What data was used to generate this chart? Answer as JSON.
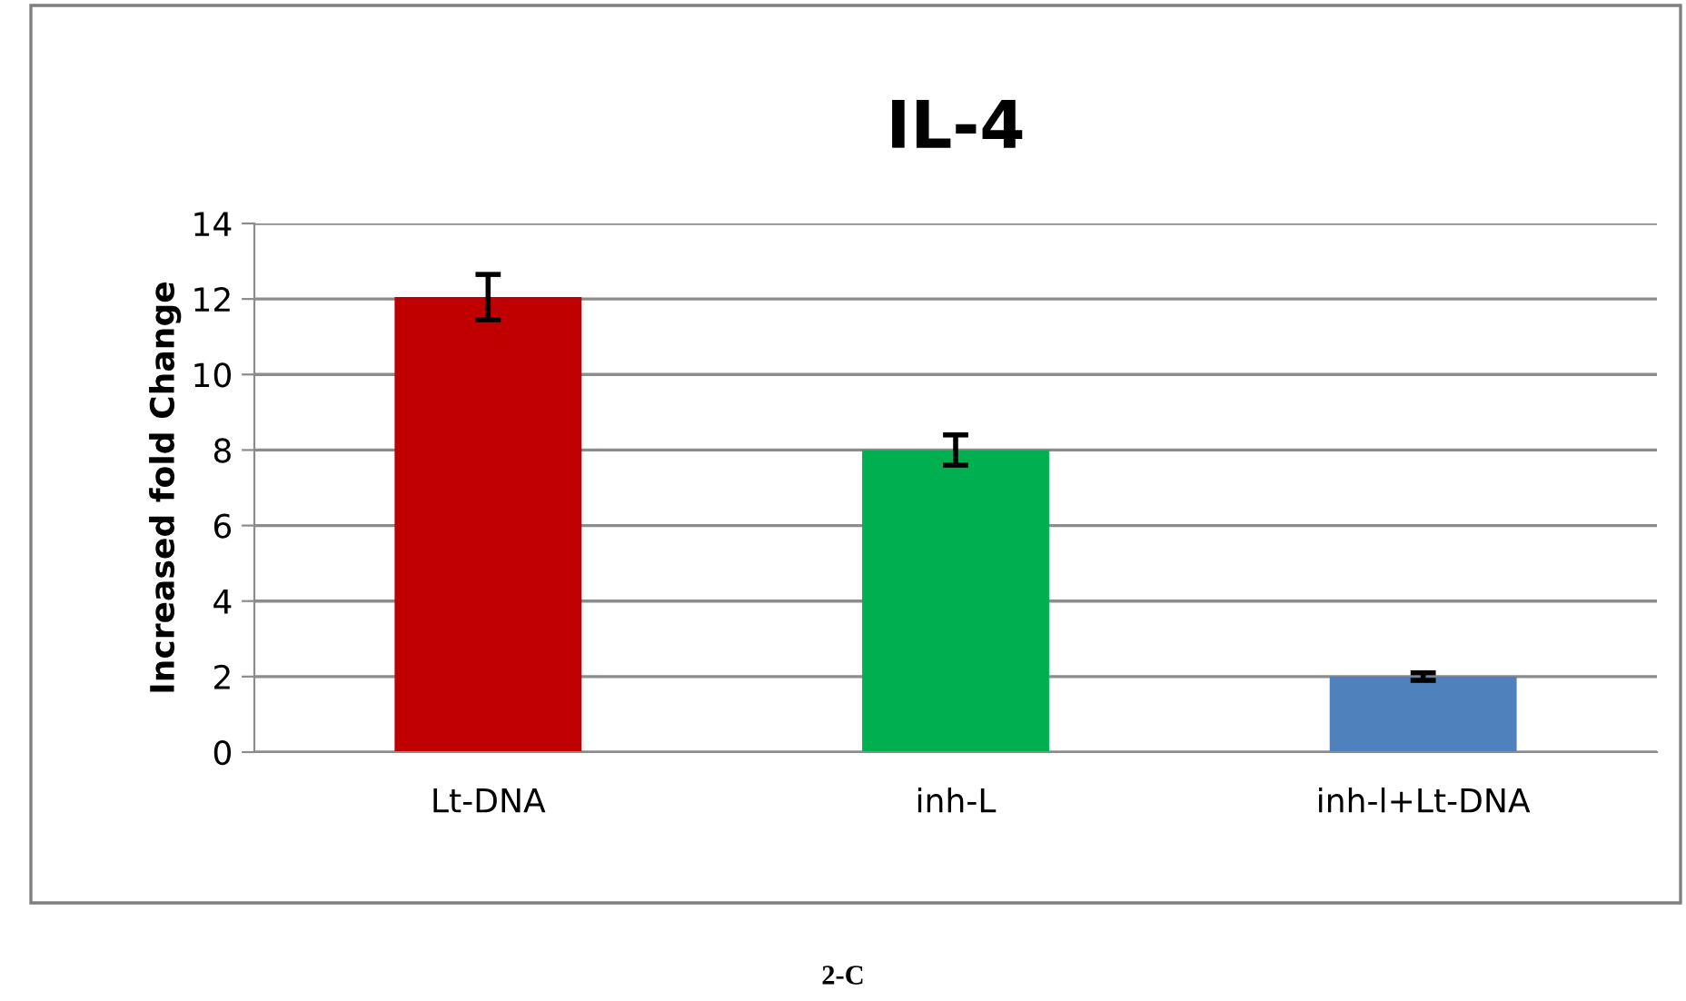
{
  "chart_data": {
    "type": "bar",
    "title": "IL-4",
    "ylabel": "Increased fold Change",
    "categories": [
      "Lt-DNA",
      "inh-L",
      "inh-l+Lt-DNA"
    ],
    "values": [
      12.05,
      8.0,
      2.0
    ],
    "colors": [
      "#c00000",
      "#00b050",
      "#4f81bd"
    ],
    "errors": [
      0.6,
      0.4,
      0.1
    ],
    "ylim": [
      0,
      14
    ],
    "yticks": [
      0,
      2,
      4,
      6,
      8,
      10,
      12,
      14
    ],
    "grid": "y",
    "annotations": [
      "2-C"
    ]
  }
}
